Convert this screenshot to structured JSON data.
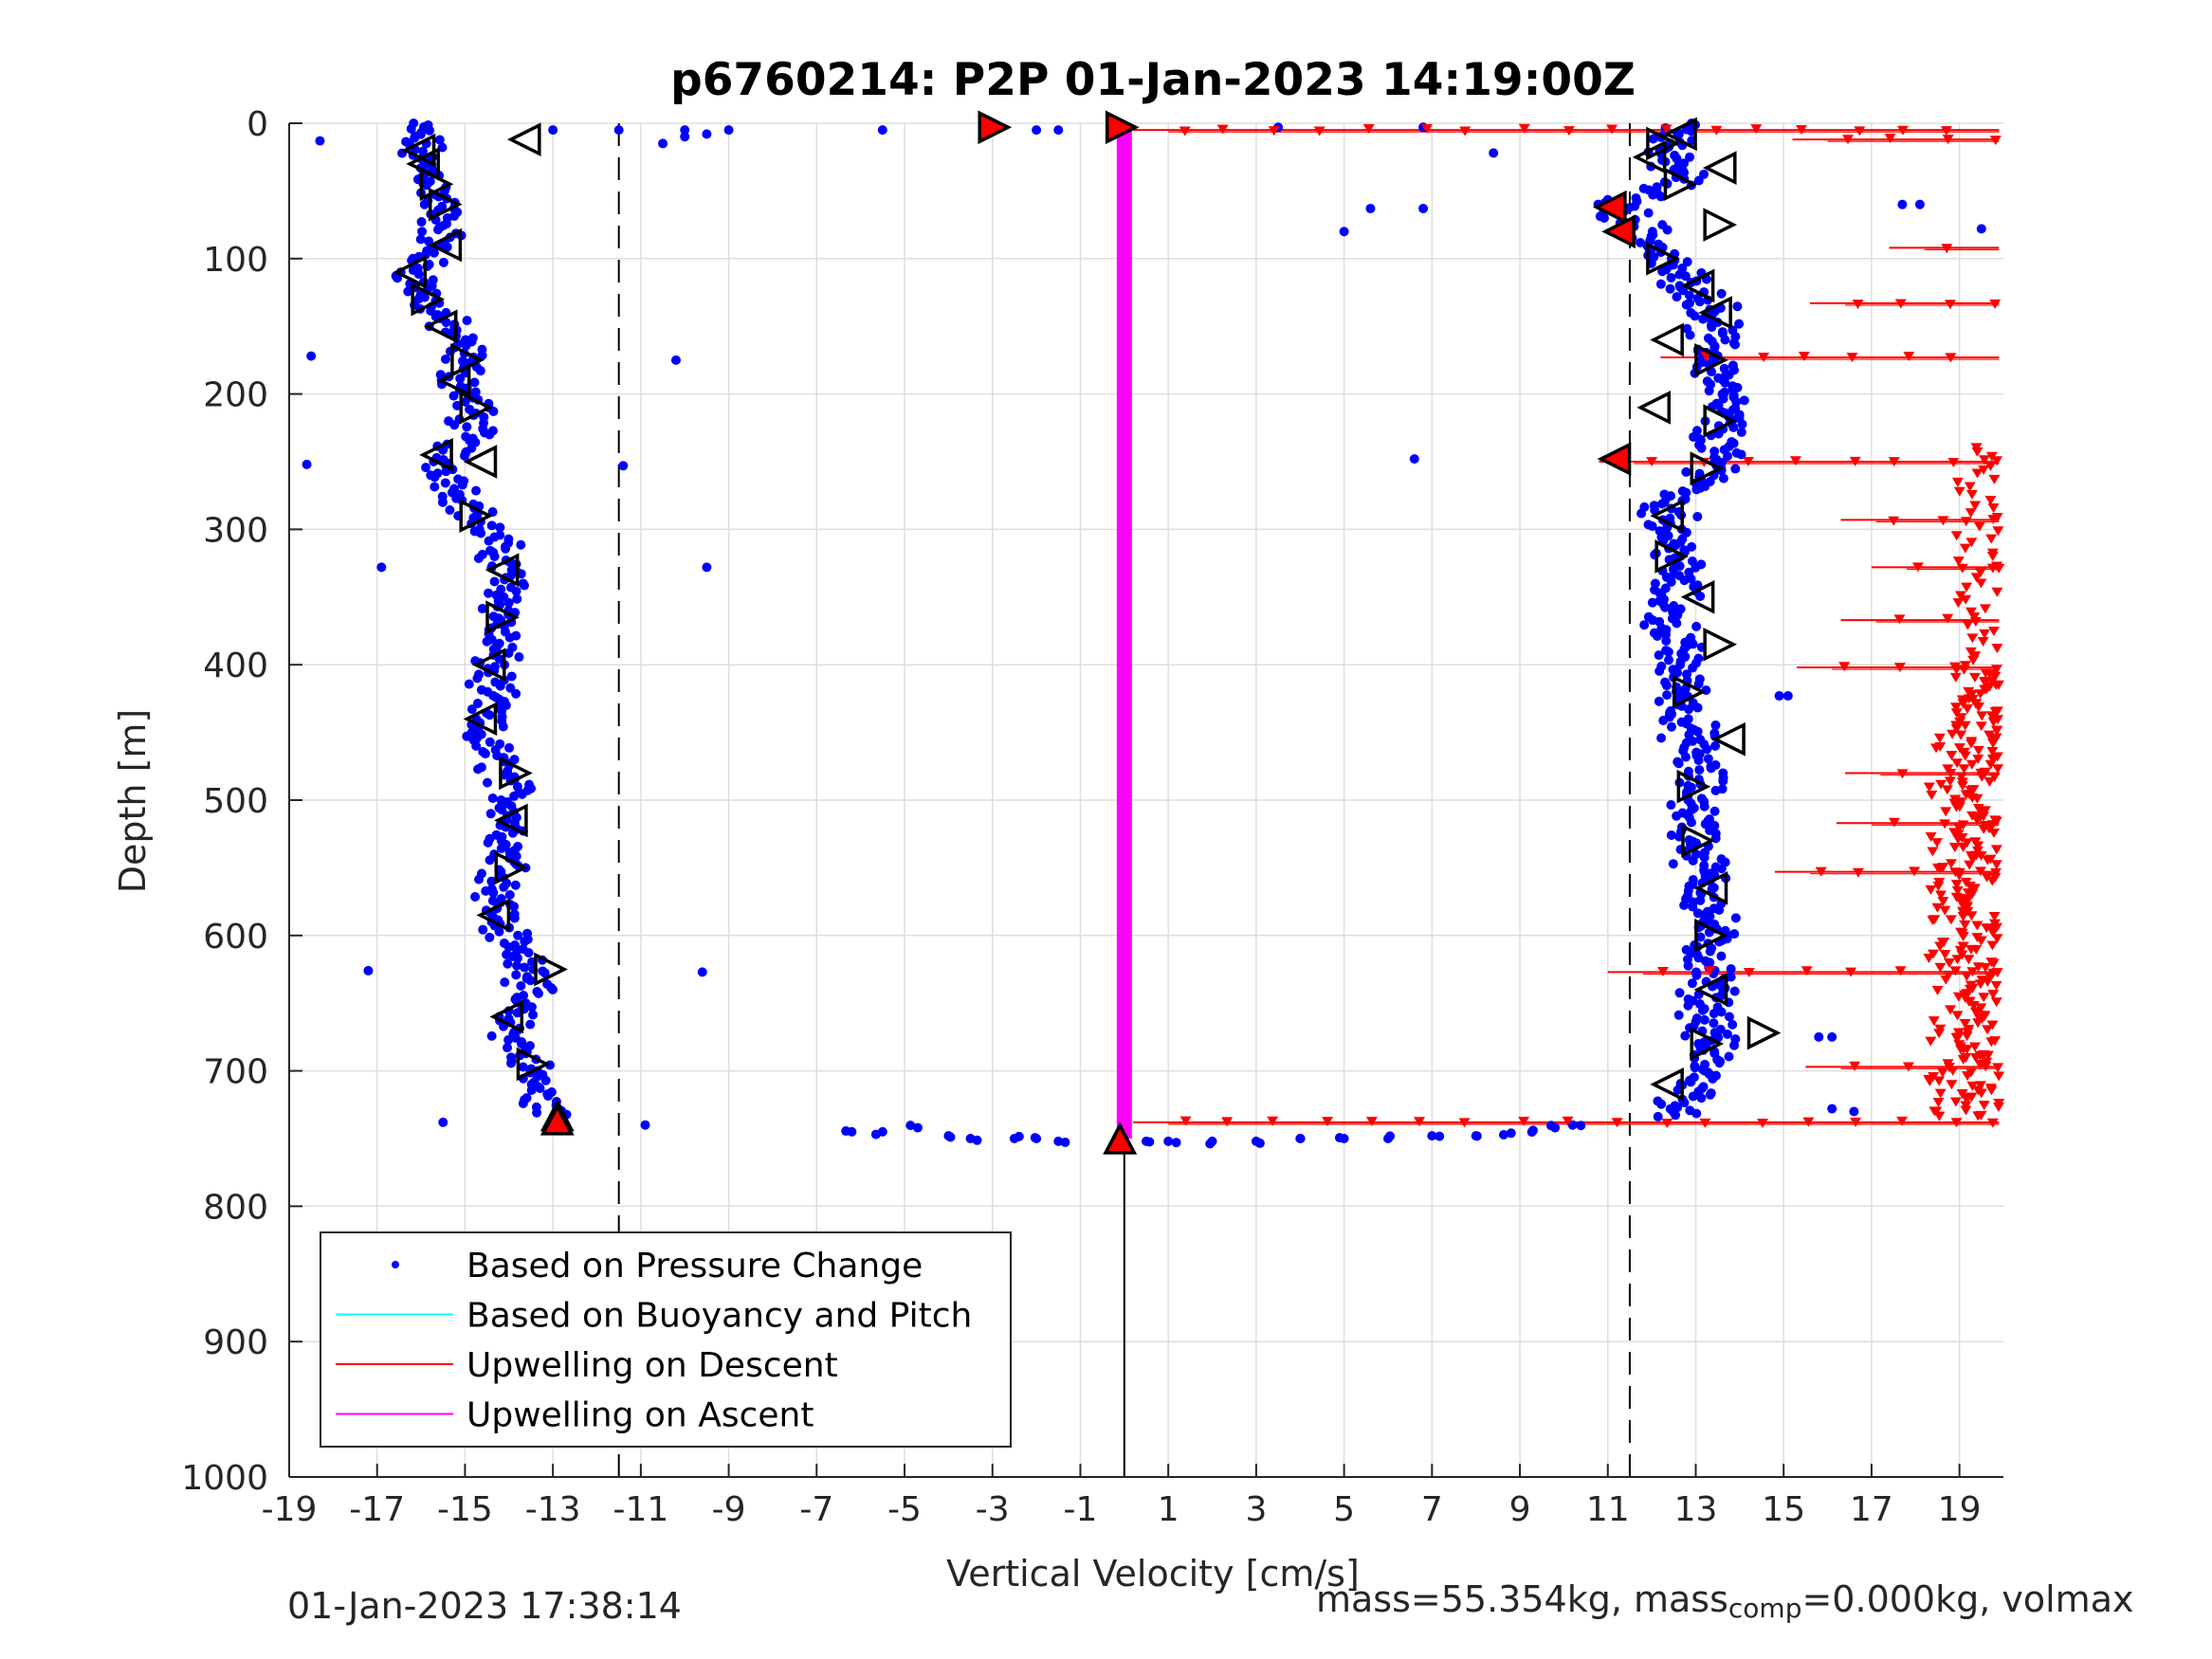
{
  "chart_data": {
    "type": "scatter",
    "title": "p6760214: P2P 01-Jan-2023 14:19:00Z",
    "xlabel": "Vertical Velocity [cm/s]",
    "ylabel": "Depth [m]",
    "xlim": [
      -19,
      20
    ],
    "ylim": [
      0,
      1000
    ],
    "y_reversed": true,
    "xticks": [
      "-19",
      "-17",
      "-15",
      "-13",
      "-11",
      "-9",
      "-7",
      "-5",
      "-3",
      "-1",
      "1",
      "3",
      "5",
      "7",
      "9",
      "11",
      "13",
      "15",
      "17",
      "19"
    ],
    "xtick_values": [
      -19,
      -17,
      -15,
      -13,
      -11,
      -9,
      -7,
      -5,
      -3,
      -1,
      1,
      3,
      5,
      7,
      9,
      11,
      13,
      15,
      17,
      19
    ],
    "yticks": [
      "0",
      "100",
      "200",
      "300",
      "400",
      "500",
      "600",
      "700",
      "800",
      "900",
      "1000"
    ],
    "ytick_values": [
      0,
      100,
      200,
      300,
      400,
      500,
      600,
      700,
      800,
      900,
      1000
    ],
    "grid": true,
    "legend_position": "bottom-left",
    "legend": [
      {
        "label": "Based on Pressure Change",
        "color": "#0000ff",
        "marker": "dot"
      },
      {
        "label": "Based on Buoyancy and Pitch",
        "color": "#00ffff",
        "marker": "line"
      },
      {
        "label": "Upwelling on Descent",
        "color": "#ff0000",
        "marker": "line"
      },
      {
        "label": "Upwelling on Ascent",
        "color": "#ff00ff",
        "marker": "line"
      }
    ],
    "colors": {
      "pressure": "#0000ff",
      "descent": "#ff0000",
      "ascent": "#ff00ff",
      "axis": "#262626",
      "grid": "#dedede"
    },
    "reference_lines": {
      "dashed_x": [
        -11.5,
        11.5
      ],
      "solid_x": [
        0
      ],
      "solid_x_depth_range": [
        750,
        1000
      ]
    },
    "ascent_profile": {
      "x": 0,
      "depth_range": [
        0,
        750
      ]
    },
    "descent_profile": [
      [
        0,
        -16.2
      ],
      [
        15,
        -16.0
      ],
      [
        25,
        -16.1
      ],
      [
        40,
        -15.7
      ],
      [
        60,
        -15.6
      ],
      [
        80,
        -15.5
      ],
      [
        100,
        -15.9
      ],
      [
        110,
        -16.1
      ],
      [
        130,
        -15.9
      ],
      [
        150,
        -15.4
      ],
      [
        170,
        -15.0
      ],
      [
        190,
        -15.1
      ],
      [
        210,
        -14.8
      ],
      [
        230,
        -14.9
      ],
      [
        250,
        -15.5
      ],
      [
        270,
        -15.1
      ],
      [
        290,
        -14.8
      ],
      [
        310,
        -14.3
      ],
      [
        330,
        -14.1
      ],
      [
        350,
        -14.0
      ],
      [
        370,
        -14.2
      ],
      [
        390,
        -14.3
      ],
      [
        410,
        -14.4
      ],
      [
        430,
        -14.5
      ],
      [
        450,
        -14.7
      ],
      [
        470,
        -14.3
      ],
      [
        490,
        -14.0
      ],
      [
        510,
        -13.9
      ],
      [
        530,
        -14.0
      ],
      [
        550,
        -14.0
      ],
      [
        570,
        -14.2
      ],
      [
        590,
        -14.2
      ],
      [
        610,
        -13.9
      ],
      [
        625,
        -13.3
      ],
      [
        640,
        -13.6
      ],
      [
        660,
        -14.0
      ],
      [
        680,
        -13.8
      ],
      [
        700,
        -13.5
      ],
      [
        720,
        -13.3
      ],
      [
        735,
        -13.0
      ]
    ],
    "ascent_velocity_profile": [
      [
        0,
        13.0
      ],
      [
        15,
        12.5
      ],
      [
        25,
        12.2
      ],
      [
        40,
        12.8
      ],
      [
        60,
        11.2
      ],
      [
        70,
        11.5
      ],
      [
        80,
        11.9
      ],
      [
        100,
        12.2
      ],
      [
        120,
        12.9
      ],
      [
        140,
        13.5
      ],
      [
        160,
        13.3
      ],
      [
        180,
        13.5
      ],
      [
        200,
        13.6
      ],
      [
        220,
        13.6
      ],
      [
        240,
        13.4
      ],
      [
        260,
        13.5
      ],
      [
        280,
        12.3
      ],
      [
        300,
        12.5
      ],
      [
        320,
        12.6
      ],
      [
        340,
        12.5
      ],
      [
        360,
        12.4
      ],
      [
        380,
        12.5
      ],
      [
        400,
        12.6
      ],
      [
        420,
        12.7
      ],
      [
        440,
        12.8
      ],
      [
        460,
        12.9
      ],
      [
        480,
        13.1
      ],
      [
        500,
        13.0
      ],
      [
        520,
        13.0
      ],
      [
        540,
        13.1
      ],
      [
        560,
        13.2
      ],
      [
        580,
        13.3
      ],
      [
        600,
        13.3
      ],
      [
        620,
        13.3
      ],
      [
        640,
        13.3
      ],
      [
        660,
        13.3
      ],
      [
        680,
        13.3
      ],
      [
        700,
        13.2
      ],
      [
        720,
        12.9
      ],
      [
        735,
        12.2
      ]
    ],
    "surface_transition": [
      [
        5,
        -13.0
      ],
      [
        5,
        -11.5
      ],
      [
        5,
        -10.0
      ],
      [
        8,
        -9.5
      ],
      [
        5,
        -9.0
      ],
      [
        5,
        -5.5
      ],
      [
        5,
        -3.0
      ],
      [
        5,
        -2.0
      ],
      [
        5,
        -1.5
      ],
      [
        3,
        3.5
      ],
      [
        3,
        6.8
      ]
    ],
    "bottom_transition": [
      [
        745,
        -6.2
      ],
      [
        745,
        -5.5
      ],
      [
        742,
        -4.7
      ],
      [
        748,
        -4.0
      ],
      [
        750,
        -3.5
      ],
      [
        750,
        -2.5
      ],
      [
        750,
        -2.0
      ],
      [
        752,
        -1.5
      ],
      [
        752,
        0.5
      ],
      [
        752,
        1.0
      ],
      [
        752,
        2.0
      ],
      [
        752,
        3.0
      ],
      [
        750,
        4.0
      ],
      [
        750,
        5.0
      ],
      [
        750,
        6.0
      ],
      [
        748,
        7.0
      ],
      [
        748,
        8.0
      ],
      [
        746,
        8.8
      ],
      [
        744,
        9.3
      ],
      [
        742,
        9.8
      ],
      [
        740,
        10.2
      ]
    ],
    "outliers": [
      [
        13,
        -18.3
      ],
      [
        172,
        -18.5
      ],
      [
        252,
        -18.6
      ],
      [
        328,
        -16.9
      ],
      [
        626,
        -17.2
      ],
      [
        738,
        -15.5
      ],
      [
        740,
        -10.9
      ],
      [
        253,
        -11.4
      ],
      [
        15,
        -10.5
      ],
      [
        10,
        -10.0
      ],
      [
        175,
        -10.2
      ],
      [
        328,
        -9.5
      ],
      [
        627,
        -9.6
      ],
      [
        80,
        5.0
      ],
      [
        63,
        5.6
      ],
      [
        63,
        6.8
      ],
      [
        22,
        8.4
      ],
      [
        248,
        6.6
      ],
      [
        423,
        14.9
      ],
      [
        423,
        15.1
      ],
      [
        60,
        17.7
      ],
      [
        60,
        18.1
      ],
      [
        78,
        19.5
      ],
      [
        728,
        16.1
      ],
      [
        730,
        16.6
      ],
      [
        675,
        15.8
      ],
      [
        675,
        16.1
      ]
    ],
    "descent_markers_x_max": 19.9,
    "upwelling_descent": [
      {
        "y": 5,
        "x0": 0.2,
        "x1": 19.9
      },
      {
        "y": 12,
        "x0": 15.2,
        "x1": 19.9
      },
      {
        "y": 92,
        "x0": 17.4,
        "x1": 19.9
      },
      {
        "y": 133,
        "x0": 15.6,
        "x1": 19.9
      },
      {
        "y": 173,
        "x0": 12.2,
        "x1": 19.9
      },
      {
        "y": 250,
        "x0": 10.8,
        "x1": 19.9
      },
      {
        "y": 293,
        "x0": 16.3,
        "x1": 19.9
      },
      {
        "y": 328,
        "x0": 17.0,
        "x1": 19.9
      },
      {
        "y": 367,
        "x0": 16.3,
        "x1": 19.9
      },
      {
        "y": 402,
        "x0": 15.3,
        "x1": 19.9
      },
      {
        "y": 480,
        "x0": 16.4,
        "x1": 19.9
      },
      {
        "y": 517,
        "x0": 16.2,
        "x1": 19.9
      },
      {
        "y": 553,
        "x0": 14.8,
        "x1": 19.9
      },
      {
        "y": 627,
        "x0": 11.0,
        "x1": 19.9
      },
      {
        "y": 697,
        "x0": 15.5,
        "x1": 19.9
      },
      {
        "y": 738,
        "x0": 0.2,
        "x1": 19.9
      }
    ],
    "triangle_markers": [
      {
        "y": 3,
        "x": -3.0,
        "dir": "right",
        "filled": true
      },
      {
        "y": 3,
        "x": -0.1,
        "dir": "right",
        "filled": true
      },
      {
        "y": 12,
        "x": -13.6,
        "dir": "left",
        "filled": false
      },
      {
        "y": 20,
        "x": -16.0,
        "dir": "left",
        "filled": false
      },
      {
        "y": 30,
        "x": -15.9,
        "dir": "left",
        "filled": false
      },
      {
        "y": 45,
        "x": -15.7,
        "dir": "right",
        "filled": false
      },
      {
        "y": 60,
        "x": -15.5,
        "dir": "right",
        "filled": false
      },
      {
        "y": 90,
        "x": -15.4,
        "dir": "left",
        "filled": false
      },
      {
        "y": 110,
        "x": -16.2,
        "dir": "left",
        "filled": false
      },
      {
        "y": 130,
        "x": -15.9,
        "dir": "right",
        "filled": false
      },
      {
        "y": 150,
        "x": -15.5,
        "dir": "left",
        "filled": false
      },
      {
        "y": 175,
        "x": -15.0,
        "dir": "right",
        "filled": false
      },
      {
        "y": 190,
        "x": -15.2,
        "dir": "left",
        "filled": false
      },
      {
        "y": 210,
        "x": -14.8,
        "dir": "right",
        "filled": false
      },
      {
        "y": 245,
        "x": -15.6,
        "dir": "left",
        "filled": false
      },
      {
        "y": 250,
        "x": -14.6,
        "dir": "left",
        "filled": false
      },
      {
        "y": 290,
        "x": -14.8,
        "dir": "right",
        "filled": false
      },
      {
        "y": 330,
        "x": -14.1,
        "dir": "left",
        "filled": false
      },
      {
        "y": 365,
        "x": -14.2,
        "dir": "right",
        "filled": false
      },
      {
        "y": 400,
        "x": -14.4,
        "dir": "left",
        "filled": false
      },
      {
        "y": 440,
        "x": -14.6,
        "dir": "left",
        "filled": false
      },
      {
        "y": 480,
        "x": -13.9,
        "dir": "right",
        "filled": false
      },
      {
        "y": 515,
        "x": -13.9,
        "dir": "left",
        "filled": false
      },
      {
        "y": 550,
        "x": -14.0,
        "dir": "right",
        "filled": false
      },
      {
        "y": 585,
        "x": -14.3,
        "dir": "left",
        "filled": false
      },
      {
        "y": 625,
        "x": -13.1,
        "dir": "right",
        "filled": false
      },
      {
        "y": 660,
        "x": -14.0,
        "dir": "left",
        "filled": false
      },
      {
        "y": 695,
        "x": -13.5,
        "dir": "right",
        "filled": false
      },
      {
        "y": 735,
        "x": -12.9,
        "dir": "up",
        "filled": false
      },
      {
        "y": 738,
        "x": -12.9,
        "dir": "up",
        "filled": true
      },
      {
        "y": 752,
        "x": -0.1,
        "dir": "up",
        "filled": false
      },
      {
        "y": 752,
        "x": -0.1,
        "dir": "up",
        "filled": true
      },
      {
        "y": 8,
        "x": 12.7,
        "dir": "left",
        "filled": false
      },
      {
        "y": 15,
        "x": 12.2,
        "dir": "right",
        "filled": false
      },
      {
        "y": 25,
        "x": 12.0,
        "dir": "left",
        "filled": false
      },
      {
        "y": 33,
        "x": 13.6,
        "dir": "left",
        "filled": false
      },
      {
        "y": 45,
        "x": 12.6,
        "dir": "right",
        "filled": false
      },
      {
        "y": 62,
        "x": 11.1,
        "dir": "left",
        "filled": true
      },
      {
        "y": 75,
        "x": 13.5,
        "dir": "right",
        "filled": false
      },
      {
        "y": 80,
        "x": 11.3,
        "dir": "left",
        "filled": true
      },
      {
        "y": 100,
        "x": 12.2,
        "dir": "right",
        "filled": false
      },
      {
        "y": 120,
        "x": 13.1,
        "dir": "left",
        "filled": false
      },
      {
        "y": 140,
        "x": 13.5,
        "dir": "left",
        "filled": false
      },
      {
        "y": 160,
        "x": 12.4,
        "dir": "left",
        "filled": false
      },
      {
        "y": 175,
        "x": 13.3,
        "dir": "right",
        "filled": false
      },
      {
        "y": 210,
        "x": 12.1,
        "dir": "left",
        "filled": false
      },
      {
        "y": 220,
        "x": 13.5,
        "dir": "right",
        "filled": false
      },
      {
        "y": 248,
        "x": 11.2,
        "dir": "left",
        "filled": true
      },
      {
        "y": 255,
        "x": 13.2,
        "dir": "right",
        "filled": false
      },
      {
        "y": 290,
        "x": 12.4,
        "dir": "left",
        "filled": false
      },
      {
        "y": 320,
        "x": 12.4,
        "dir": "right",
        "filled": false
      },
      {
        "y": 350,
        "x": 13.1,
        "dir": "left",
        "filled": false
      },
      {
        "y": 385,
        "x": 13.5,
        "dir": "right",
        "filled": false
      },
      {
        "y": 420,
        "x": 12.8,
        "dir": "right",
        "filled": false
      },
      {
        "y": 455,
        "x": 13.8,
        "dir": "left",
        "filled": false
      },
      {
        "y": 490,
        "x": 12.9,
        "dir": "right",
        "filled": false
      },
      {
        "y": 530,
        "x": 13.0,
        "dir": "right",
        "filled": false
      },
      {
        "y": 565,
        "x": 13.4,
        "dir": "left",
        "filled": false
      },
      {
        "y": 600,
        "x": 13.3,
        "dir": "right",
        "filled": false
      },
      {
        "y": 640,
        "x": 13.4,
        "dir": "left",
        "filled": false
      },
      {
        "y": 672,
        "x": 14.5,
        "dir": "right",
        "filled": false
      },
      {
        "y": 680,
        "x": 13.2,
        "dir": "right",
        "filled": false
      },
      {
        "y": 710,
        "x": 12.4,
        "dir": "left",
        "filled": false
      }
    ]
  },
  "footer": {
    "timestamp": "01-Jan-2023 17:38:14",
    "mass_text": "mass=55.354kg, mass",
    "mass_sub": "comp",
    "mass_tail": "=0.000kg, volmax"
  }
}
